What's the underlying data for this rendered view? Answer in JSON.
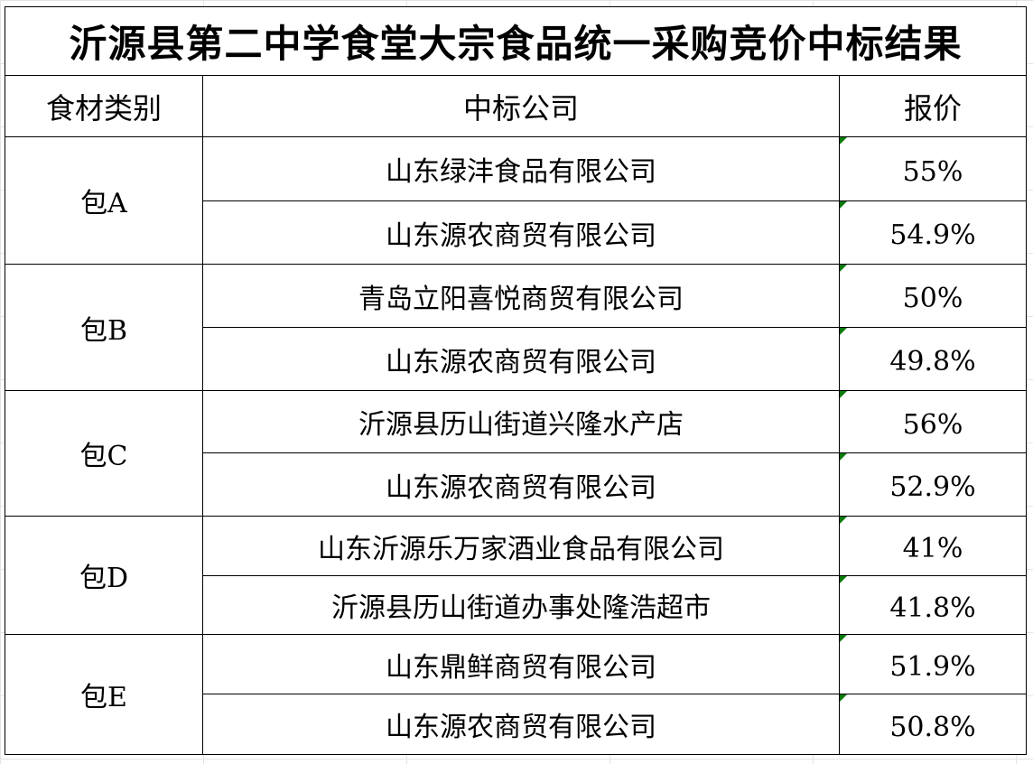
{
  "title": "沂源县第二中学食堂大宗食品统一采购竞价中标结果",
  "headers": {
    "category": "食材类别",
    "company": "中标公司",
    "price": "报价"
  },
  "colors": {
    "indicator": "#0a7a0a"
  },
  "groups": [
    {
      "category": "包A",
      "rows": [
        {
          "company": "山东绿沣食品有限公司",
          "price": "55%"
        },
        {
          "company": "山东源农商贸有限公司",
          "price": "54.9%"
        }
      ]
    },
    {
      "category": "包B",
      "rows": [
        {
          "company": "青岛立阳喜悦商贸有限公司",
          "price": "50%"
        },
        {
          "company": "山东源农商贸有限公司",
          "price": "49.8%"
        }
      ]
    },
    {
      "category": "包C",
      "rows": [
        {
          "company": "沂源县历山街道兴隆水产店",
          "price": "56%"
        },
        {
          "company": "山东源农商贸有限公司",
          "price": "52.9%"
        }
      ]
    },
    {
      "category": "包D",
      "rows": [
        {
          "company": "山东沂源乐万家酒业食品有限公司",
          "price": "41%"
        },
        {
          "company": "沂源县历山街道办事处隆浩超市",
          "price": "41.8%"
        }
      ]
    },
    {
      "category": "包E",
      "rows": [
        {
          "company": "山东鼎鲜商贸有限公司",
          "price": "51.9%"
        },
        {
          "company": "山东源农商贸有限公司",
          "price": "50.8%"
        }
      ]
    }
  ]
}
